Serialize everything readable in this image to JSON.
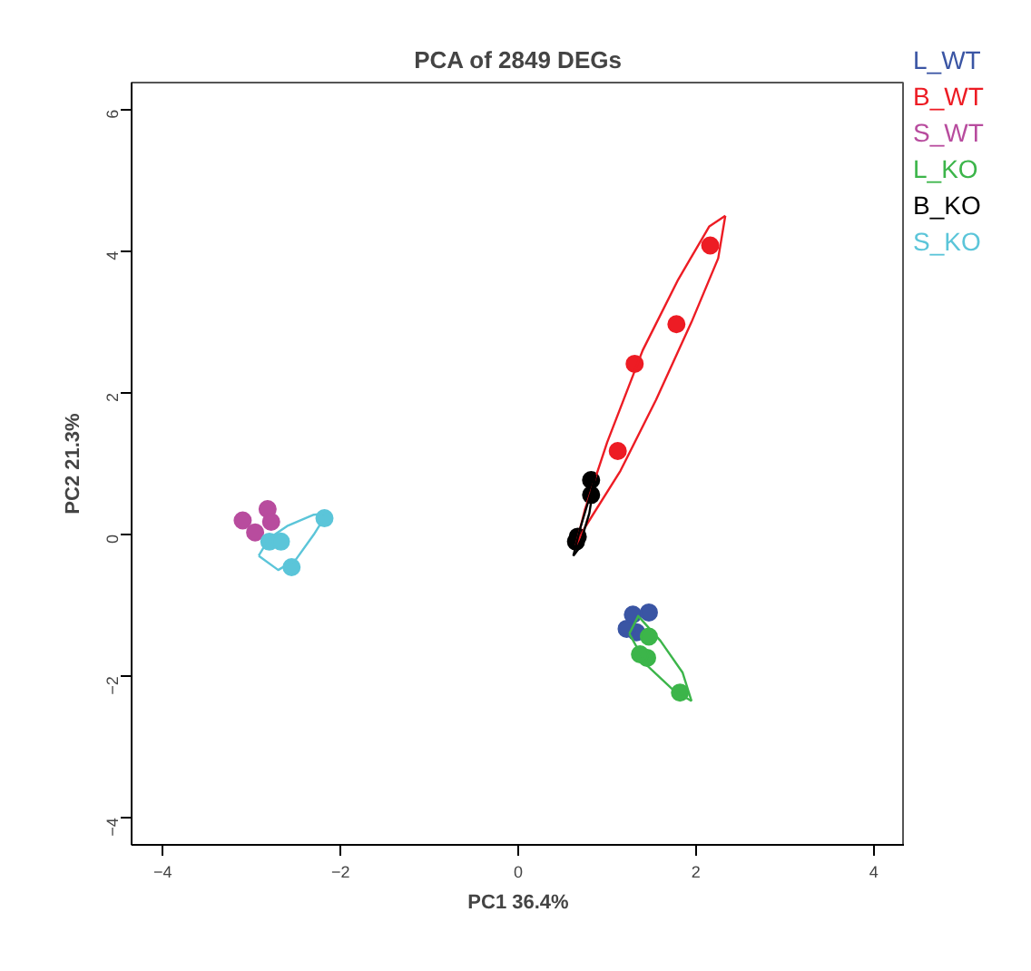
{
  "chart_data": {
    "type": "scatter",
    "title": "PCA of 2849 DEGs",
    "xlabel": "PC1 36.4%",
    "ylabel": "PC2 21.3%",
    "xlim": [
      -4.35,
      4.35
    ],
    "ylim": [
      -4.38,
      6.38
    ],
    "xticks": [
      -4,
      -2,
      0,
      2,
      4
    ],
    "yticks": [
      -4,
      -2,
      0,
      2,
      4,
      6
    ],
    "grid": false,
    "marker": "circle",
    "series": [
      {
        "name": "L_WT",
        "color": "#3a55a4",
        "x": [
          1.29,
          1.47,
          1.33,
          1.22
        ],
        "values": [
          -1.13,
          -1.1,
          -1.38,
          -1.33
        ]
      },
      {
        "name": "B_WT",
        "color": "#ed1c24",
        "x": [
          2.16,
          1.78,
          1.31,
          1.12
        ],
        "values": [
          4.08,
          2.97,
          2.41,
          1.18
        ]
      },
      {
        "name": "S_WT",
        "color": "#b84c9e",
        "x": [
          -3.1,
          -2.96,
          -2.82,
          -2.78
        ],
        "values": [
          0.2,
          0.03,
          0.36,
          0.18
        ]
      },
      {
        "name": "L_KO",
        "color": "#3cb54a",
        "x": [
          1.82,
          1.45,
          1.47,
          1.37
        ],
        "values": [
          -2.23,
          -1.74,
          -1.44,
          -1.69
        ]
      },
      {
        "name": "B_KO",
        "color": "#000000",
        "x": [
          0.82,
          0.82,
          0.67,
          0.65
        ],
        "values": [
          0.77,
          0.56,
          -0.03,
          -0.1
        ]
      },
      {
        "name": "S_KO",
        "color": "#5bc5d9",
        "x": [
          -2.18,
          -2.55,
          -2.8,
          -2.67
        ],
        "values": [
          0.23,
          -0.46,
          -0.1,
          -0.1
        ]
      },
      {
        "type": "line",
        "marker": "none",
        "color": "#ed1c24",
        "x": [
          0.65,
          0.75,
          1.0,
          1.4,
          1.8,
          2.15,
          2.33
        ],
        "values": [
          -0.15,
          0.35,
          1.3,
          2.6,
          3.6,
          4.35,
          4.5
        ]
      },
      {
        "type": "line",
        "marker": "none",
        "color": "#ed1c24",
        "x": [
          0.65,
          0.75,
          1.15,
          1.55,
          1.95,
          2.25,
          2.33
        ],
        "values": [
          -0.15,
          0.1,
          0.9,
          1.9,
          3.0,
          3.9,
          4.5
        ]
      },
      {
        "type": "line",
        "marker": "none",
        "color": "#000000",
        "x": [
          0.62,
          0.7,
          0.82,
          0.87
        ],
        "values": [
          -0.3,
          0.1,
          0.6,
          0.85
        ]
      },
      {
        "type": "line",
        "marker": "none",
        "color": "#000000",
        "x": [
          0.62,
          0.68,
          0.8,
          0.87
        ],
        "values": [
          -0.3,
          -0.2,
          0.3,
          0.85
        ]
      },
      {
        "type": "line",
        "marker": "none",
        "color": "#5bc5d9",
        "x": [
          -2.92,
          -2.8,
          -2.6,
          -2.3,
          -2.15
        ],
        "values": [
          -0.3,
          -0.05,
          0.12,
          0.28,
          0.3
        ]
      },
      {
        "type": "line",
        "marker": "none",
        "color": "#5bc5d9",
        "x": [
          -2.92,
          -2.7,
          -2.5,
          -2.3,
          -2.15
        ],
        "values": [
          -0.3,
          -0.5,
          -0.35,
          0.0,
          0.3
        ]
      },
      {
        "type": "line",
        "marker": "none",
        "color": "#3cb54a",
        "x": [
          1.25,
          1.35,
          1.6,
          1.85,
          1.95
        ],
        "values": [
          -1.4,
          -1.15,
          -1.5,
          -1.95,
          -2.35
        ]
      },
      {
        "type": "line",
        "marker": "none",
        "color": "#3cb54a",
        "x": [
          1.25,
          1.45,
          1.75,
          1.95
        ],
        "values": [
          -1.4,
          -1.85,
          -2.2,
          -2.35
        ]
      }
    ]
  }
}
